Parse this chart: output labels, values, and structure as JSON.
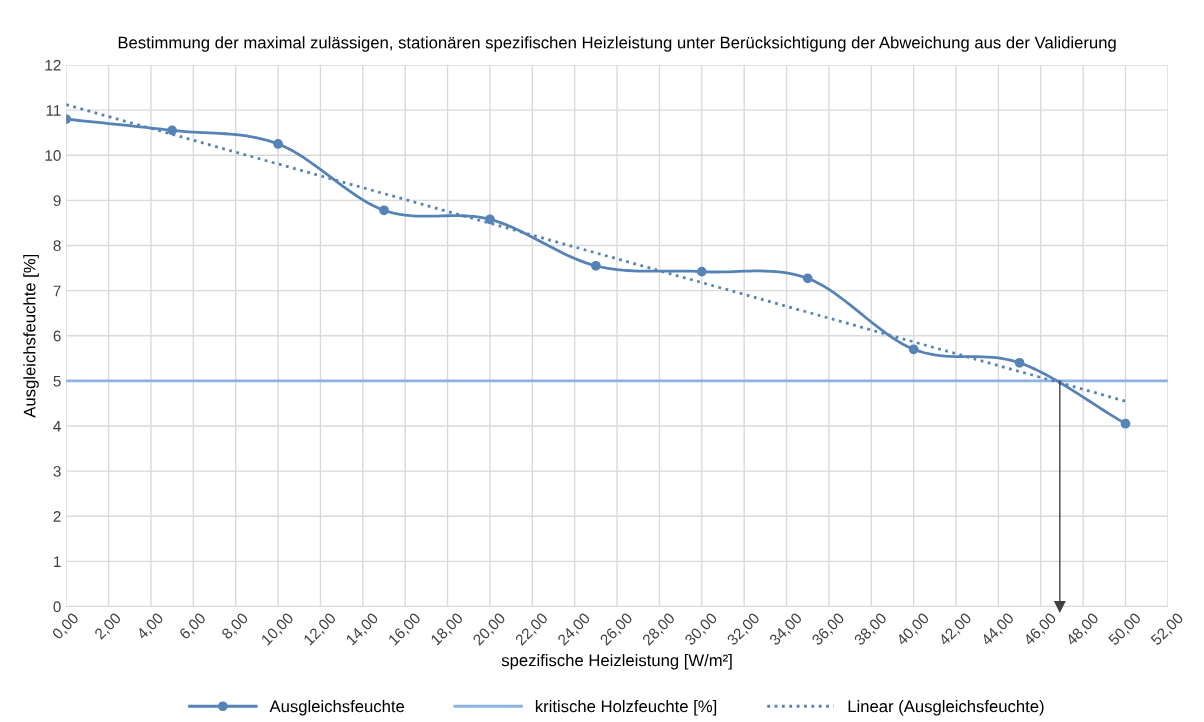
{
  "chart_data": {
    "type": "line",
    "title": "Bestimmung der maximal zulässigen, stationären spezifischen Heizleistung unter Berücksichtigung der Abweichung aus der Validierung",
    "xlabel": "spezifische Heizleistung [W/m²]",
    "ylabel": "Ausgleichsfeuchte [%]",
    "series": [
      {
        "name": "Ausgleichsfeuchte",
        "color": "#5683b5",
        "x": [
          0,
          5,
          10,
          15,
          20,
          25,
          30,
          35,
          40,
          45,
          50
        ],
        "values": [
          10.8,
          10.55,
          10.25,
          8.78,
          8.58,
          7.55,
          7.42,
          7.27,
          5.7,
          5.4,
          4.05
        ],
        "marker": "circle",
        "line_style": "solid"
      },
      {
        "name": "Linear (Ausgleichsfeuchte)",
        "color": "#5683b5",
        "x": [
          0,
          50
        ],
        "values": [
          11.12,
          4.55
        ],
        "marker": "none",
        "line_style": "dotted"
      },
      {
        "color": "#404040",
        "x": [
          46.9,
          46.9
        ],
        "values": [
          5,
          0
        ],
        "marker": "triangle",
        "line_style": "solid"
      }
    ],
    "ref_lines": [
      {
        "axis": "y",
        "value": 5,
        "label": "kritische Holzfeuchte [%]",
        "color": "#8db3e2",
        "line_style": "solid"
      }
    ],
    "xlim": [
      0,
      52
    ],
    "xticks": [
      {
        "value": 0,
        "label": "0,00"
      },
      {
        "value": 2,
        "label": "2,00"
      },
      {
        "value": 4,
        "label": "4,00"
      },
      {
        "value": 6,
        "label": "6,00"
      },
      {
        "value": 8,
        "label": "8,00"
      },
      {
        "value": 10,
        "label": "10,00"
      },
      {
        "value": 12,
        "label": "12,00"
      },
      {
        "value": 14,
        "label": "14,00"
      },
      {
        "value": 16,
        "label": "16,00"
      },
      {
        "value": 18,
        "label": "18,00"
      },
      {
        "value": 20,
        "label": "20,00"
      },
      {
        "value": 22,
        "label": "22,00"
      },
      {
        "value": 24,
        "label": "24,00"
      },
      {
        "value": 26,
        "label": "26,00"
      },
      {
        "value": 28,
        "label": "28,00"
      },
      {
        "value": 30,
        "label": "30,00"
      },
      {
        "value": 32,
        "label": "32,00"
      },
      {
        "value": 34,
        "label": "34,00"
      },
      {
        "value": 36,
        "label": "36,00"
      },
      {
        "value": 38,
        "label": "38,00"
      },
      {
        "value": 40,
        "label": "40,00"
      },
      {
        "value": 42,
        "label": "42,00"
      },
      {
        "value": 44,
        "label": "44,00"
      },
      {
        "value": 46,
        "label": "46,00"
      },
      {
        "value": 48,
        "label": "48,00"
      },
      {
        "value": 50,
        "label": "50,00"
      },
      {
        "value": 52,
        "label": "52,00"
      }
    ],
    "ylim": [
      0,
      12
    ],
    "yticks": [
      0,
      1,
      2,
      3,
      4,
      5,
      6,
      7,
      8,
      9,
      10,
      11,
      12
    ],
    "grid": true,
    "legend": "bottom"
  }
}
